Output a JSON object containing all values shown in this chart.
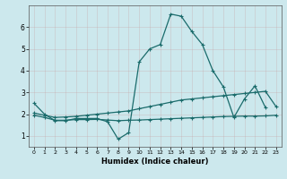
{
  "xlabel": "Humidex (Indice chaleur)",
  "bg_color": "#cce8ed",
  "line_color": "#1a6b6b",
  "grid_color": "#aacdd4",
  "xlim": [
    -0.5,
    23.5
  ],
  "ylim": [
    0.5,
    7.0
  ],
  "xticks": [
    0,
    1,
    2,
    3,
    4,
    5,
    6,
    7,
    8,
    9,
    10,
    11,
    12,
    13,
    14,
    15,
    16,
    17,
    18,
    19,
    20,
    21,
    22,
    23
  ],
  "yticks": [
    1,
    2,
    3,
    4,
    5,
    6
  ],
  "line1_y": [
    2.5,
    2.0,
    1.7,
    1.7,
    1.8,
    1.8,
    1.8,
    1.65,
    0.85,
    1.15,
    4.4,
    5.0,
    5.2,
    6.6,
    6.5,
    5.8,
    5.2,
    4.0,
    3.25,
    1.85,
    2.7,
    3.3,
    2.3,
    null
  ],
  "line2_y": [
    2.05,
    1.95,
    1.85,
    1.87,
    1.9,
    1.95,
    2.0,
    2.05,
    2.1,
    2.15,
    2.25,
    2.35,
    2.45,
    2.55,
    2.65,
    2.7,
    2.75,
    2.8,
    2.85,
    2.9,
    2.95,
    3.0,
    3.05,
    2.35
  ],
  "line3_y": [
    1.95,
    1.85,
    1.72,
    1.72,
    1.75,
    1.75,
    1.76,
    1.73,
    1.7,
    1.72,
    1.73,
    1.75,
    1.77,
    1.79,
    1.81,
    1.83,
    1.85,
    1.87,
    1.89,
    1.9,
    1.91,
    1.91,
    1.92,
    1.95
  ]
}
